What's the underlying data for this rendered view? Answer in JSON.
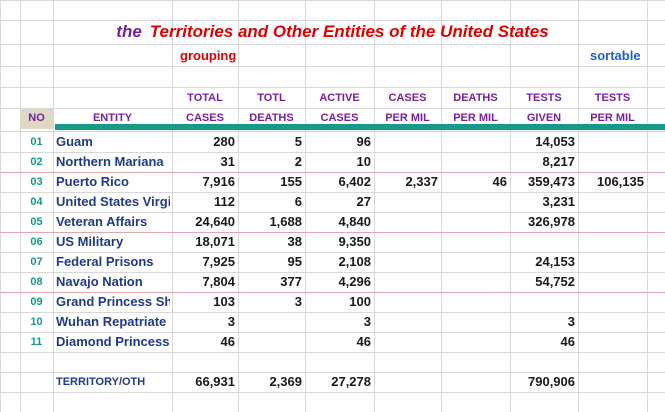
{
  "title": {
    "prefix": "the",
    "main": "Territories and Other Entities of the United States"
  },
  "tags": {
    "grouping": "grouping",
    "sortable": "sortable"
  },
  "headers": {
    "no": "NO",
    "entity": "ENTITY",
    "total_cases": [
      "TOTAL",
      "CASES"
    ],
    "totl_deaths": [
      "TOTL",
      "DEATHS"
    ],
    "active_cases": [
      "ACTIVE",
      "CASES"
    ],
    "cases_per_mil": [
      "CASES",
      "PER MIL"
    ],
    "deaths_per_mil": [
      "DEATHS",
      "PER MIL"
    ],
    "tests_given": [
      "TESTS",
      "GIVEN"
    ],
    "tests_per_mil": [
      "TESTS",
      "PER MIL"
    ]
  },
  "rows": [
    {
      "no": "01",
      "entity": "Guam",
      "total_cases": "280",
      "totl_deaths": "5",
      "active_cases": "96",
      "cases_per_mil": "",
      "deaths_per_mil": "",
      "tests_given": "14,053",
      "tests_per_mil": ""
    },
    {
      "no": "02",
      "entity": "Northern Mariana",
      "total_cases": "31",
      "totl_deaths": "2",
      "active_cases": "10",
      "cases_per_mil": "",
      "deaths_per_mil": "",
      "tests_given": "8,217",
      "tests_per_mil": ""
    },
    {
      "no": "03",
      "entity": "Puerto Rico",
      "total_cases": "7,916",
      "totl_deaths": "155",
      "active_cases": "6,402",
      "cases_per_mil": "2,337",
      "deaths_per_mil": "46",
      "tests_given": "359,473",
      "tests_per_mil": "106,135"
    },
    {
      "no": "04",
      "entity": "United States Virgi",
      "total_cases": "112",
      "totl_deaths": "6",
      "active_cases": "27",
      "cases_per_mil": "",
      "deaths_per_mil": "",
      "tests_given": "3,231",
      "tests_per_mil": ""
    },
    {
      "no": "05",
      "entity": "Veteran Affairs",
      "total_cases": "24,640",
      "totl_deaths": "1,688",
      "active_cases": "4,840",
      "cases_per_mil": "",
      "deaths_per_mil": "",
      "tests_given": "326,978",
      "tests_per_mil": ""
    },
    {
      "no": "06",
      "entity": "US Military",
      "total_cases": "18,071",
      "totl_deaths": "38",
      "active_cases": "9,350",
      "cases_per_mil": "",
      "deaths_per_mil": "",
      "tests_given": "",
      "tests_per_mil": ""
    },
    {
      "no": "07",
      "entity": "Federal Prisons",
      "total_cases": "7,925",
      "totl_deaths": "95",
      "active_cases": "2,108",
      "cases_per_mil": "",
      "deaths_per_mil": "",
      "tests_given": "24,153",
      "tests_per_mil": ""
    },
    {
      "no": "08",
      "entity": "Navajo Nation",
      "total_cases": "7,804",
      "totl_deaths": "377",
      "active_cases": "4,296",
      "cases_per_mil": "",
      "deaths_per_mil": "",
      "tests_given": "54,752",
      "tests_per_mil": ""
    },
    {
      "no": "09",
      "entity": "Grand Princess Shi",
      "total_cases": "103",
      "totl_deaths": "3",
      "active_cases": "100",
      "cases_per_mil": "",
      "deaths_per_mil": "",
      "tests_given": "",
      "tests_per_mil": ""
    },
    {
      "no": "10",
      "entity": "Wuhan Repatriate",
      "total_cases": "3",
      "totl_deaths": "",
      "active_cases": "3",
      "cases_per_mil": "",
      "deaths_per_mil": "",
      "tests_given": "3",
      "tests_per_mil": ""
    },
    {
      "no": "11",
      "entity": "Diamond Princess",
      "total_cases": "46",
      "totl_deaths": "",
      "active_cases": "46",
      "cases_per_mil": "",
      "deaths_per_mil": "",
      "tests_given": "46",
      "tests_per_mil": ""
    }
  ],
  "footer": {
    "entity": "TERRITORY/OTH",
    "total_cases": "66,931",
    "totl_deaths": "2,369",
    "active_cases": "27,278",
    "tests_given": "790,906"
  },
  "colors": {
    "title_prefix": "#7b1fa2",
    "title_main": "#e00000",
    "header_text": "#7b1fa2",
    "entity_text": "#1f3a8a",
    "row_number": "#17998a",
    "header_band": "#17998a",
    "sortable": "#1f5fd6"
  }
}
